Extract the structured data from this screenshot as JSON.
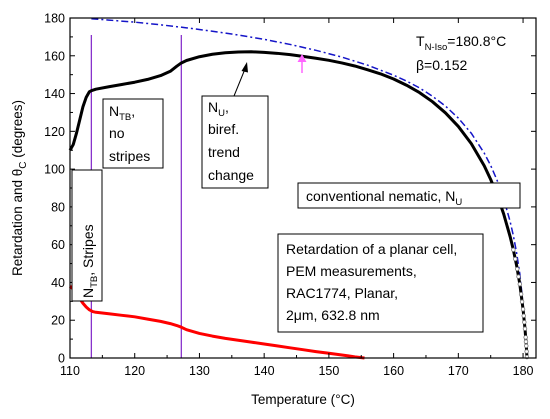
{
  "chart_data": {
    "type": "line",
    "xlabel_prefix": "Temperature (",
    "xlabel_unit": "°C",
    "xlabel_suffix": ")",
    "ylabel_main": "Retardation and θ",
    "ylabel_sub": "C",
    "ylabel_suffix": " (degrees)",
    "xlim": [
      110,
      182
    ],
    "ylim": [
      0,
      180
    ],
    "xticks": [
      110,
      120,
      130,
      140,
      150,
      160,
      170,
      180
    ],
    "yticks": [
      0,
      20,
      40,
      60,
      80,
      100,
      120,
      140,
      160,
      180
    ],
    "vlines": [
      113.3,
      127.2
    ],
    "colors": {
      "retardation": "#000000",
      "theta": "#ff0000",
      "fit": "#1515c8",
      "vline": "#8833cc",
      "arrow_pink": "#ff66ff",
      "markers": "#777777"
    },
    "series": [
      {
        "key": "retardation",
        "points": [
          [
            110,
            110
          ],
          [
            110.5,
            113
          ],
          [
            111,
            119
          ],
          [
            111.5,
            126
          ],
          [
            112,
            133
          ],
          [
            112.5,
            138
          ],
          [
            113,
            141
          ],
          [
            113.3,
            141.5
          ],
          [
            114,
            142.3
          ],
          [
            116,
            143.6
          ],
          [
            118,
            144.8
          ],
          [
            120,
            146
          ],
          [
            122,
            147.5
          ],
          [
            124,
            149.5
          ],
          [
            125.5,
            151.8
          ],
          [
            126.5,
            154.5
          ],
          [
            127.2,
            156.2
          ],
          [
            128,
            157.5
          ],
          [
            130,
            159.5
          ],
          [
            132,
            160.8
          ],
          [
            134,
            161.6
          ],
          [
            136,
            162
          ],
          [
            138,
            162.1
          ],
          [
            140,
            161.8
          ],
          [
            142,
            161.3
          ],
          [
            144,
            160.6
          ],
          [
            146,
            159.7
          ],
          [
            148,
            158.7
          ],
          [
            150,
            157.6
          ],
          [
            152,
            156.2
          ],
          [
            154,
            154.6
          ],
          [
            156,
            152.6
          ],
          [
            158,
            150.4
          ],
          [
            160,
            147.7
          ],
          [
            162,
            144.4
          ],
          [
            164,
            140.5
          ],
          [
            166,
            135.7
          ],
          [
            168,
            129.8
          ],
          [
            170,
            122.6
          ],
          [
            172,
            113.5
          ],
          [
            174,
            101.8
          ],
          [
            175,
            94.5
          ],
          [
            176,
            86.2
          ],
          [
            177,
            76.3
          ],
          [
            178,
            64.3
          ],
          [
            178.5,
            57.3
          ],
          [
            179,
            49.1
          ],
          [
            179.5,
            39.1
          ],
          [
            180,
            25.8
          ],
          [
            180.3,
            15.5
          ],
          [
            180.5,
            6.4
          ],
          [
            180.6,
            0.5
          ]
        ]
      },
      {
        "key": "theta",
        "points": [
          [
            110,
            38
          ],
          [
            110.5,
            36.5
          ],
          [
            111,
            34
          ],
          [
            111.5,
            31.5
          ],
          [
            112,
            29
          ],
          [
            112.5,
            27
          ],
          [
            113,
            25.5
          ],
          [
            113.5,
            24.6
          ],
          [
            114,
            24.2
          ],
          [
            116,
            23.4
          ],
          [
            118,
            22.6
          ],
          [
            120,
            21.8
          ],
          [
            122,
            20.6
          ],
          [
            124,
            19.4
          ],
          [
            125.5,
            18.2
          ],
          [
            126.5,
            17.2
          ],
          [
            127.2,
            16.3
          ],
          [
            128,
            15
          ],
          [
            130,
            13
          ],
          [
            132,
            11.6
          ],
          [
            134,
            10.4
          ],
          [
            136,
            9.4
          ],
          [
            138,
            8.4
          ],
          [
            140,
            7.4
          ],
          [
            142,
            6.4
          ],
          [
            144,
            5.4
          ],
          [
            146,
            4.4
          ],
          [
            148,
            3.4
          ],
          [
            150,
            2.5
          ],
          [
            152,
            1.6
          ],
          [
            153,
            1.1
          ],
          [
            154,
            0.6
          ],
          [
            155,
            0.2
          ],
          [
            155.5,
            0
          ]
        ]
      },
      {
        "key": "fit",
        "points": [
          [
            113.3,
            179.6
          ],
          [
            116,
            178.9
          ],
          [
            120,
            177.8
          ],
          [
            124,
            176.4
          ],
          [
            128,
            174.8
          ],
          [
            132,
            173
          ],
          [
            136,
            171
          ],
          [
            140,
            168.7
          ],
          [
            144,
            166
          ],
          [
            148,
            162.9
          ],
          [
            152,
            159.3
          ],
          [
            156,
            155
          ],
          [
            160,
            149.7
          ],
          [
            162,
            146.6
          ],
          [
            164,
            143
          ],
          [
            166,
            138.6
          ],
          [
            168,
            133.4
          ],
          [
            170,
            127
          ],
          [
            172,
            119
          ],
          [
            174,
            108.5
          ],
          [
            175,
            101.9
          ],
          [
            176,
            94
          ],
          [
            177,
            84.4
          ],
          [
            178,
            72.3
          ],
          [
            178.5,
            64.8
          ],
          [
            179,
            55.8
          ],
          [
            179.5,
            44.5
          ],
          [
            180,
            28.5
          ],
          [
            180.3,
            15.5
          ],
          [
            180.6,
            0.5
          ]
        ]
      }
    ],
    "marker_temps": [
      178.5,
      178.8,
      179.1,
      179.3,
      179.5,
      179.7,
      179.85,
      180,
      180.1,
      180.2,
      180.3,
      180.4,
      180.45,
      180.5,
      180.55,
      180.6
    ],
    "annotations": {
      "tniso_main": "T",
      "tniso_sub": "N-Iso",
      "tniso_value": "=180.8°C",
      "beta": "β=0.152",
      "ntb_main": "N",
      "ntb_sub": "TB",
      "ntb_suffix": ",",
      "ntb_line2": "no",
      "ntb_line3": "stripes",
      "nu_main": "N",
      "nu_sub": "U",
      "nu_suffix": ",",
      "nu_line2": "biref.",
      "nu_line3": "trend",
      "nu_line4": "change",
      "stripes_main": "N",
      "stripes_sub": "TB",
      "stripes_suffix": ", Stripes",
      "conv_main": "conventional nematic, N",
      "conv_sub": "U",
      "info_line1": "Retardation of a planar cell,",
      "info_line2": "PEM measurements,",
      "info_line3": "RAC1774, Planar,",
      "info_line4_mu": "2μm",
      "info_line4_rest": ", 632.8 nm"
    }
  }
}
